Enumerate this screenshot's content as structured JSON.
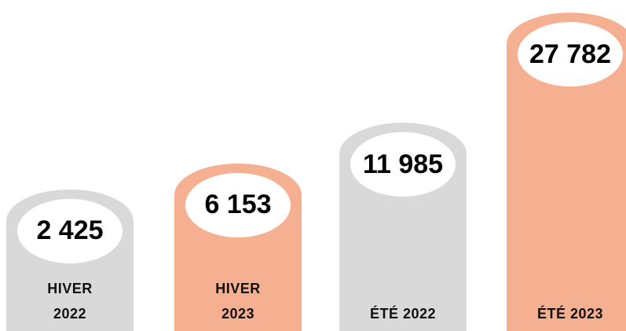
{
  "chart_data": {
    "type": "bar",
    "categories": [
      "HIVER 2022",
      "HIVER 2023",
      "ÉTÉ 2022",
      "ÉTÉ 2023"
    ],
    "values": [
      2425,
      6153,
      11985,
      27782
    ],
    "value_labels": [
      "2 425",
      "6 153",
      "11 985",
      "27 782"
    ],
    "colors": [
      "#d9d9d9",
      "#f5b092",
      "#d9d9d9",
      "#f5b092"
    ]
  }
}
